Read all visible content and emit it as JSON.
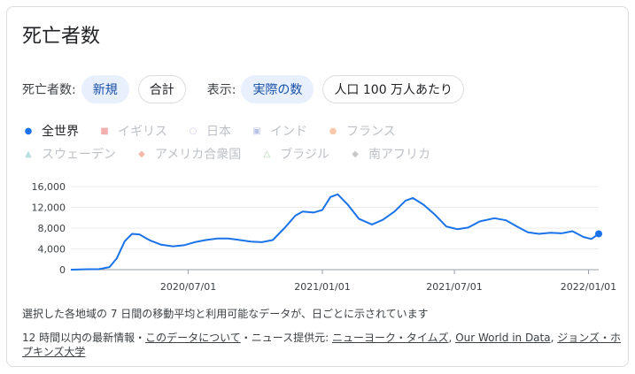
{
  "title": "死亡者数",
  "controls": {
    "deaths_label": "死亡者数:",
    "new_label": "新規",
    "total_label": "合計",
    "display_label": "表示:",
    "actual_label": "実際の数",
    "per_million_label": "人口 100 万人あたり"
  },
  "legend": [
    {
      "name": "全世界",
      "color": "#1a73e8",
      "shape": "circle",
      "active": true
    },
    {
      "name": "イギリス",
      "color": "#f4b0b0",
      "shape": "square",
      "active": false
    },
    {
      "name": "日本",
      "color": "#d7c8f0",
      "shape": "ring",
      "active": false
    },
    {
      "name": "インド",
      "color": "#b8c2e6",
      "shape": "square-outline",
      "active": false
    },
    {
      "name": "フランス",
      "color": "#f8c9a8",
      "shape": "circle",
      "active": false
    },
    {
      "name": "スウェーデン",
      "color": "#b9e0de",
      "shape": "triangle",
      "active": false
    },
    {
      "name": "アメリカ合衆国",
      "color": "#f4b8a8",
      "shape": "diamond",
      "active": false
    },
    {
      "name": "ブラジル",
      "color": "#a8d8a8",
      "shape": "triangle-outline",
      "active": false
    },
    {
      "name": "南アフリカ",
      "color": "#c8c8c8",
      "shape": "diamond",
      "active": false
    }
  ],
  "chart_data": {
    "type": "line",
    "y_ticks": [
      "16,000",
      "12,000",
      "8,000",
      "4,000",
      "0"
    ],
    "x_ticks": [
      "2020/07/01",
      "2021/01/01",
      "2021/07/01",
      "2022/01/01"
    ],
    "ylim": [
      0,
      16000
    ],
    "series": [
      {
        "name": "全世界",
        "color": "#1a73e8",
        "points": [
          [
            "2020-01-22",
            0
          ],
          [
            "2020-02-15",
            80
          ],
          [
            "2020-03-01",
            100
          ],
          [
            "2020-03-15",
            500
          ],
          [
            "2020-03-25",
            2200
          ],
          [
            "2020-04-05",
            5500
          ],
          [
            "2020-04-15",
            6900
          ],
          [
            "2020-04-25",
            6800
          ],
          [
            "2020-05-10",
            5600
          ],
          [
            "2020-05-25",
            4800
          ],
          [
            "2020-06-10",
            4500
          ],
          [
            "2020-06-25",
            4700
          ],
          [
            "2020-07-10",
            5300
          ],
          [
            "2020-07-25",
            5700
          ],
          [
            "2020-08-10",
            6000
          ],
          [
            "2020-08-25",
            6000
          ],
          [
            "2020-09-10",
            5700
          ],
          [
            "2020-09-25",
            5400
          ],
          [
            "2020-10-10",
            5300
          ],
          [
            "2020-10-25",
            5700
          ],
          [
            "2020-11-10",
            8000
          ],
          [
            "2020-11-25",
            10400
          ],
          [
            "2020-12-05",
            11200
          ],
          [
            "2020-12-20",
            11000
          ],
          [
            "2021-01-01",
            11500
          ],
          [
            "2021-01-12",
            14000
          ],
          [
            "2021-01-22",
            14500
          ],
          [
            "2021-02-05",
            12500
          ],
          [
            "2021-02-20",
            9800
          ],
          [
            "2021-03-10",
            8700
          ],
          [
            "2021-03-25",
            9600
          ],
          [
            "2021-04-10",
            11200
          ],
          [
            "2021-04-25",
            13300
          ],
          [
            "2021-05-05",
            13800
          ],
          [
            "2021-05-20",
            12500
          ],
          [
            "2021-06-05",
            10500
          ],
          [
            "2021-06-20",
            8300
          ],
          [
            "2021-07-05",
            7800
          ],
          [
            "2021-07-20",
            8100
          ],
          [
            "2021-08-05",
            9300
          ],
          [
            "2021-08-25",
            9900
          ],
          [
            "2021-09-10",
            9500
          ],
          [
            "2021-09-25",
            8300
          ],
          [
            "2021-10-10",
            7200
          ],
          [
            "2021-10-25",
            6900
          ],
          [
            "2021-11-10",
            7100
          ],
          [
            "2021-11-25",
            7000
          ],
          [
            "2021-12-10",
            7400
          ],
          [
            "2021-12-25",
            6300
          ],
          [
            "2022-01-05",
            5900
          ],
          [
            "2022-01-15",
            6900
          ]
        ]
      }
    ]
  },
  "note": "選択した各地域の 7 日間の移動平均と利用可能なデータが、日ごとに示されています",
  "sources": {
    "prefix": "12 時間以内の最新情報・",
    "about_link": "このデータについて",
    "middle": "・ニュース提供元: ",
    "nyt_link": "ニューヨーク・タイムズ",
    "sep": ", ",
    "owid_link": "Our World in Data",
    "sep2": ", ",
    "jhu_link": "ジョンズ・ホプキンズ大学"
  }
}
